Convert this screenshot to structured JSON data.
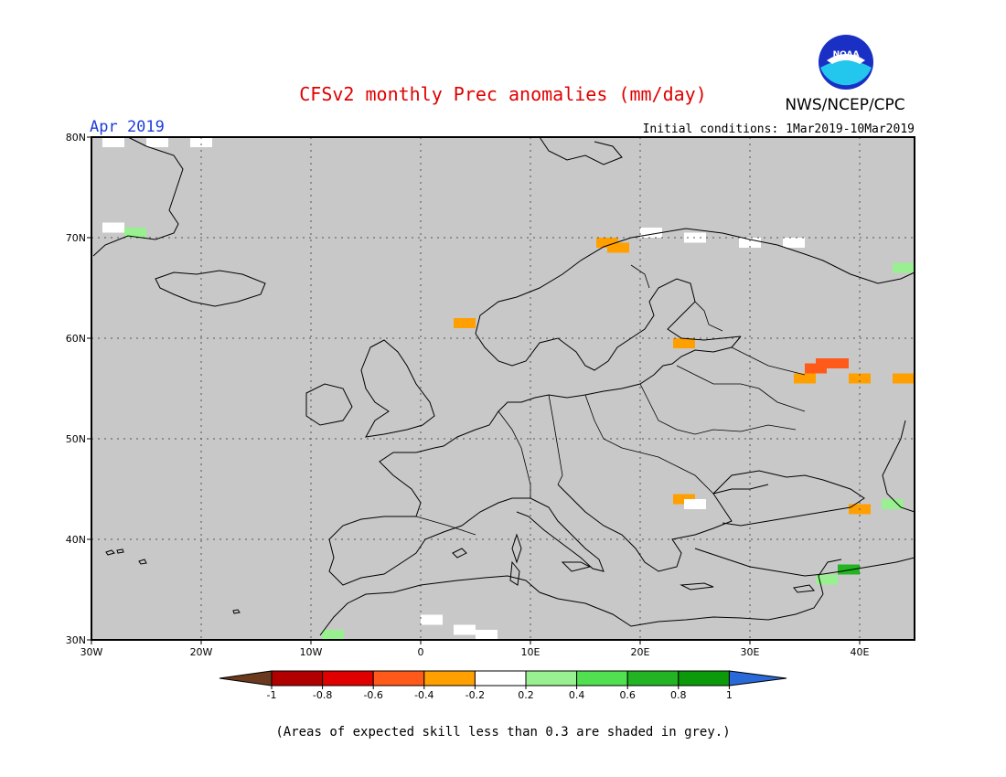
{
  "title": "CFSv2 monthly Prec anomalies (mm/day)",
  "month_label": "Apr 2019",
  "initial_conditions": "Initial conditions: 1Mar2019-10Mar2019",
  "agency": "NWS/NCEP/CPC",
  "logo_text": "NOAA",
  "footnote": "(Areas of expected skill less than 0.3 are shaded in grey.)",
  "map": {
    "lon_range": [
      -30,
      45
    ],
    "lat_range": [
      30,
      80
    ],
    "lon_ticks": [
      "30W",
      "20W",
      "10W",
      "0",
      "10E",
      "20E",
      "30E",
      "40E"
    ],
    "lat_ticks": [
      "80N",
      "70N",
      "60N",
      "50N",
      "40N",
      "30N"
    ],
    "background_color": "#c8c8c8",
    "grid": "dotted"
  },
  "colorbar": {
    "tick_labels": [
      "-1",
      "-0.8",
      "-0.6",
      "-0.4",
      "-0.2",
      "0.2",
      "0.4",
      "0.6",
      "0.8",
      "1"
    ],
    "colors": [
      "#6b3a1e",
      "#b00000",
      "#e00000",
      "#ff5a1a",
      "#ffa000",
      "#ffffff",
      "#98f090",
      "#50e050",
      "#22b422",
      "#0a9a0a",
      "#2a6ad8"
    ]
  },
  "anomaly_cells": [
    {
      "lon": -28,
      "lat": 80,
      "value": 0.0
    },
    {
      "lon": -24,
      "lat": 80,
      "value": 0.0
    },
    {
      "lon": -20,
      "lat": 80,
      "value": 0.0
    },
    {
      "lon": -28,
      "lat": 71,
      "value": 0.0
    },
    {
      "lon": -26,
      "lat": 70.5,
      "value": 0.3
    },
    {
      "lon": 4,
      "lat": 61.5,
      "value": -0.3
    },
    {
      "lon": 17,
      "lat": 69.5,
      "value": -0.3
    },
    {
      "lon": 18,
      "lat": 69,
      "value": -0.3
    },
    {
      "lon": 24,
      "lat": 59.5,
      "value": -0.3
    },
    {
      "lon": 21,
      "lat": 70.5,
      "value": 0.0
    },
    {
      "lon": 25,
      "lat": 70,
      "value": 0.0
    },
    {
      "lon": 30,
      "lat": 69.5,
      "value": 0.0
    },
    {
      "lon": 34,
      "lat": 69.5,
      "value": 0.0
    },
    {
      "lon": 37,
      "lat": 57.5,
      "value": -0.5
    },
    {
      "lon": 38,
      "lat": 57.5,
      "value": -0.5
    },
    {
      "lon": 36,
      "lat": 57,
      "value": -0.5
    },
    {
      "lon": 35,
      "lat": 56,
      "value": -0.3
    },
    {
      "lon": 40,
      "lat": 56,
      "value": -0.3
    },
    {
      "lon": 44,
      "lat": 56,
      "value": -0.3
    },
    {
      "lon": 24,
      "lat": 44,
      "value": -0.3
    },
    {
      "lon": 25,
      "lat": 43.5,
      "value": 0.0
    },
    {
      "lon": 40,
      "lat": 43,
      "value": -0.3
    },
    {
      "lon": 43,
      "lat": 43.5,
      "value": 0.3
    },
    {
      "lon": 44,
      "lat": 67,
      "value": 0.3
    },
    {
      "lon": 37,
      "lat": 36,
      "value": 0.3
    },
    {
      "lon": 39,
      "lat": 37,
      "value": 0.7
    },
    {
      "lon": -8,
      "lat": 30.5,
      "value": 0.3
    },
    {
      "lon": 1,
      "lat": 32,
      "value": 0.0
    },
    {
      "lon": 4,
      "lat": 31,
      "value": 0.0
    },
    {
      "lon": 6,
      "lat": 30.5,
      "value": 0.0
    }
  ]
}
